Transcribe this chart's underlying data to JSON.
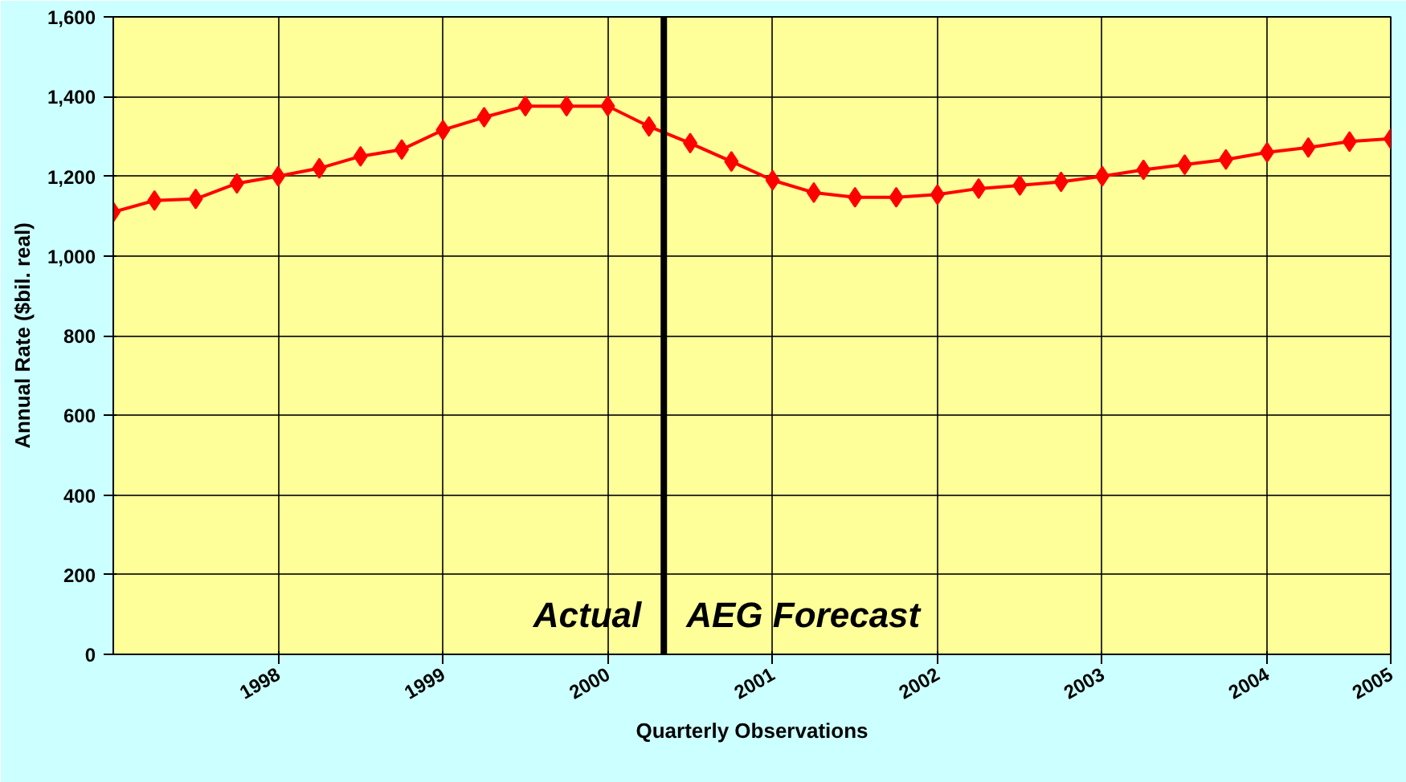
{
  "chart_data": {
    "type": "line",
    "xlabel": "Quarterly Observations",
    "ylabel": "Annual Rate ($bil. real)",
    "x": [
      1997,
      1997.25,
      1997.5,
      1997.75,
      1998,
      1998.25,
      1998.5,
      1998.75,
      1999,
      1999.25,
      1999.5,
      1999.75,
      2000,
      2000.25,
      2000.5,
      2000.75,
      2001,
      2001.25,
      2001.5,
      2001.75,
      2002,
      2002.25,
      2002.5,
      2002.75,
      2003,
      2003.25,
      2003.5,
      2003.75,
      2004,
      2004.25,
      2004.5,
      2004.75
    ],
    "series": [
      {
        "color": "#ff0000",
        "values": [
          1110,
          1139,
          1143,
          1182,
          1200,
          1220,
          1250,
          1267,
          1316,
          1348,
          1376,
          1376,
          1376,
          1325,
          1283,
          1237,
          1190,
          1159,
          1147,
          1147,
          1154,
          1169,
          1177,
          1186,
          1200,
          1216,
          1229,
          1242,
          1260,
          1272,
          1287,
          1294
        ]
      }
    ],
    "xlim": [
      1997,
      2004.75
    ],
    "xticks": [
      1998,
      1999,
      2000,
      2001,
      2002,
      2003,
      2004,
      {
        "value": 2004.75,
        "label": "2005"
      }
    ],
    "ylim": [
      0,
      1600
    ],
    "yticks": [
      {
        "value": 0,
        "label": "0"
      },
      {
        "value": 200,
        "label": "200"
      },
      {
        "value": 400,
        "label": "400"
      },
      {
        "value": 600,
        "label": "600"
      },
      {
        "value": 800,
        "label": "800"
      },
      {
        "value": 1000,
        "label": "1,000"
      },
      {
        "value": 1200,
        "label": "1,200"
      },
      {
        "value": 1400,
        "label": "1,400"
      },
      {
        "value": 1600,
        "label": "1,600"
      }
    ],
    "ref_lines": [
      {
        "axis": "x",
        "value": 2000.34,
        "color": "#000000"
      }
    ],
    "annotations": [
      "Actual",
      "AEG Forecast"
    ],
    "grid": true,
    "marker": "diamond",
    "line_style": "solid"
  }
}
